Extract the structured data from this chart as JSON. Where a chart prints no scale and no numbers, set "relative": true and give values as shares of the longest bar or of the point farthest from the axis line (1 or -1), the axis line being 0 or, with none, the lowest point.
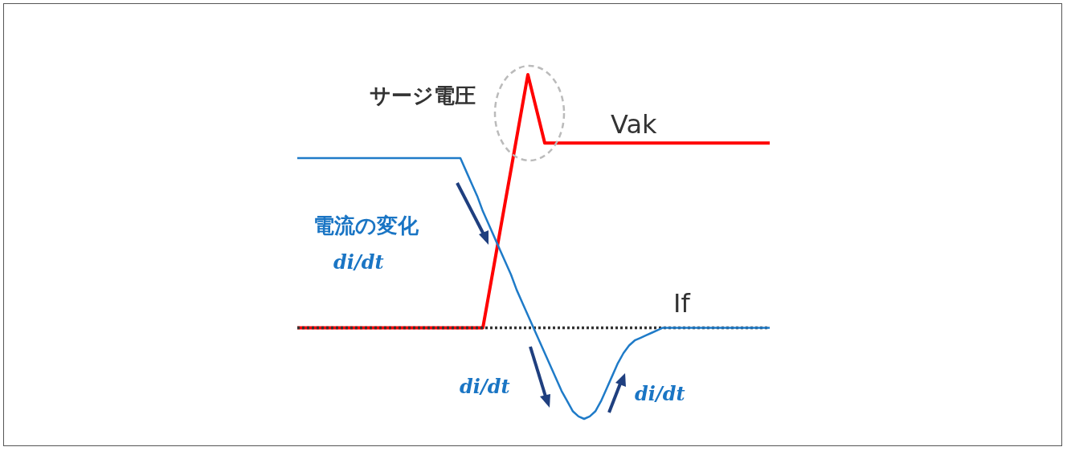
{
  "chart_data": {
    "type": "line",
    "relative": true,
    "legend": false,
    "tick_labels": false,
    "marker": "none",
    "line_style": "solid",
    "categories": [
      null,
      null,
      null,
      null,
      null,
      null,
      null,
      null,
      null,
      null,
      null,
      null,
      null,
      null,
      null,
      null,
      null,
      null,
      null,
      null,
      null,
      null,
      null,
      null,
      null,
      null,
      null,
      null,
      null,
      null,
      null,
      null,
      null,
      null,
      null,
      null,
      null,
      null,
      null,
      null,
      null,
      null,
      null,
      null,
      null,
      null,
      null,
      null,
      null,
      null,
      null,
      null,
      null,
      null,
      null,
      null,
      null,
      null,
      null,
      null,
      null,
      null,
      null,
      null,
      null,
      null,
      null,
      null,
      null,
      null,
      null,
      null,
      null,
      null,
      null,
      null,
      null,
      null,
      null,
      null,
      null,
      null,
      null,
      null,
      null
    ],
    "series": [
      {
        "name": "Vak",
        "color": "#ff0000",
        "values": [
          0,
          0,
          0,
          0,
          0,
          0,
          0,
          0,
          0,
          0,
          0,
          0,
          0,
          0,
          0,
          0,
          0,
          0,
          0,
          0,
          0,
          0,
          0,
          0,
          0,
          0,
          0,
          0,
          0,
          0,
          0,
          0,
          0,
          0,
          0.125,
          0.25,
          0.375,
          0.5,
          0.625,
          0.75,
          0.875,
          1,
          0.91,
          0.82,
          0.73,
          0.73,
          0.73,
          0.73,
          0.73,
          0.73,
          0.73,
          0.73,
          0.73,
          0.73,
          0.73,
          0.73,
          0.73,
          0.73,
          0.73,
          0.73,
          0.73,
          0.73,
          0.73,
          0.73,
          0.73,
          0.73,
          0.73,
          0.73,
          0.73,
          0.73,
          0.73,
          0.73,
          0.73,
          0.73,
          0.73,
          0.73,
          0.73,
          0.73,
          0.73,
          0.73,
          0.73,
          0.73,
          0.73,
          0.73,
          0.73
        ]
      },
      {
        "name": "If",
        "color": "#1f7bc8",
        "values": [
          0.67,
          0.67,
          0.67,
          0.67,
          0.67,
          0.67,
          0.67,
          0.67,
          0.67,
          0.67,
          0.67,
          0.67,
          0.67,
          0.67,
          0.67,
          0.67,
          0.67,
          0.67,
          0.67,
          0.67,
          0.67,
          0.67,
          0.67,
          0.67,
          0.67,
          0.67,
          0.67,
          0.67,
          0.67,
          0.67,
          0.62,
          0.57,
          0.52,
          0.46,
          0.41,
          0.36,
          0.31,
          0.26,
          0.21,
          0.15,
          0.1,
          0.05,
          0,
          -0.05,
          -0.1,
          -0.15,
          -0.2,
          -0.25,
          -0.29,
          -0.33,
          -0.35,
          -0.36,
          -0.35,
          -0.33,
          -0.29,
          -0.24,
          -0.19,
          -0.14,
          -0.1,
          -0.07,
          -0.05,
          -0.04,
          -0.03,
          -0.02,
          -0.01,
          0,
          0,
          0,
          0,
          0,
          0,
          0,
          0,
          0,
          0,
          0,
          0,
          0,
          0,
          0,
          0,
          0,
          0,
          0,
          0
        ]
      }
    ],
    "ref_lines": [
      {
        "axis": "y",
        "value": 0,
        "color": "#333333",
        "line_style": "dotted"
      }
    ],
    "annotations": [
      "サージ電圧",
      "電流の変化",
      "di/dt",
      "di/dt",
      "di/dt"
    ]
  }
}
